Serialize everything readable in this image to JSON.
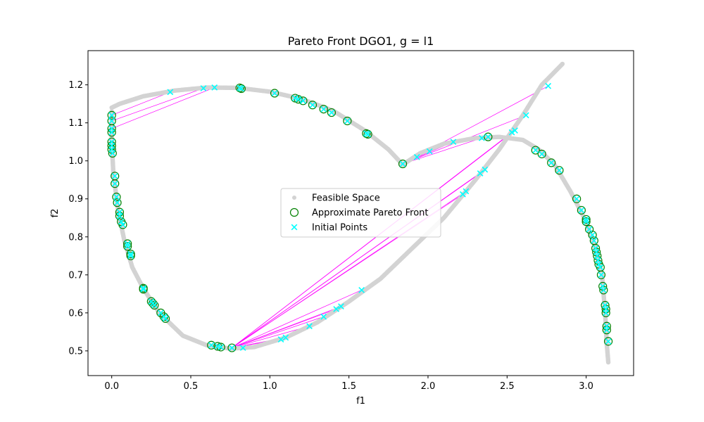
{
  "chart_data": {
    "type": "scatter",
    "title": "Pareto Front DGO1, g = l1",
    "xlabel": "f1",
    "ylabel": "f2",
    "xlim": [
      -0.15,
      3.3
    ],
    "ylim": [
      0.435,
      1.29
    ],
    "x_ticks": [
      "0.0",
      "0.5",
      "1.0",
      "1.5",
      "2.0",
      "2.5",
      "3.0"
    ],
    "y_ticks": [
      "0.5",
      "0.6",
      "0.7",
      "0.8",
      "0.9",
      "1.0",
      "1.1",
      "1.2"
    ],
    "legend": {
      "position": "center",
      "entries": [
        "Feasible Space",
        "Approximate Pareto Front",
        "Initial Points"
      ]
    },
    "colors": {
      "feasible": "#d3d3d3",
      "pareto_edge": "#008000",
      "pareto_fill": "#00ffff",
      "initial": "#00ffff",
      "trajectory": "#ff00ff"
    },
    "feasible_space_curve": [
      [
        0.0,
        1.14
      ],
      [
        0.05,
        1.15
      ],
      [
        0.2,
        1.17
      ],
      [
        0.4,
        1.185
      ],
      [
        0.6,
        1.193
      ],
      [
        0.8,
        1.192
      ],
      [
        1.0,
        1.182
      ],
      [
        1.2,
        1.163
      ],
      [
        1.4,
        1.132
      ],
      [
        1.6,
        1.08
      ],
      [
        1.75,
        1.03
      ],
      [
        1.84,
        0.99
      ],
      [
        1.95,
        1.02
      ],
      [
        2.1,
        1.045
      ],
      [
        2.3,
        1.06
      ],
      [
        2.45,
        1.063
      ],
      [
        2.6,
        1.055
      ],
      [
        2.7,
        1.03
      ],
      [
        2.8,
        0.99
      ],
      [
        2.9,
        0.92
      ],
      [
        3.0,
        0.84
      ],
      [
        3.06,
        0.77
      ],
      [
        3.1,
        0.7
      ],
      [
        3.12,
        0.6
      ],
      [
        3.13,
        0.52
      ],
      [
        3.14,
        0.47
      ],
      null,
      [
        0.0,
        1.13
      ],
      [
        0.0,
        1.05
      ],
      [
        0.01,
        0.97
      ],
      [
        0.04,
        0.87
      ],
      [
        0.08,
        0.79
      ],
      [
        0.13,
        0.72
      ],
      [
        0.2,
        0.664
      ],
      [
        0.3,
        0.6
      ],
      [
        0.45,
        0.54
      ],
      [
        0.6,
        0.515
      ],
      [
        0.75,
        0.506
      ],
      [
        0.9,
        0.51
      ],
      [
        1.1,
        0.535
      ],
      [
        1.3,
        0.575
      ],
      [
        1.5,
        0.63
      ],
      [
        1.7,
        0.69
      ],
      [
        1.9,
        0.77
      ],
      [
        2.1,
        0.85
      ],
      [
        2.3,
        0.95
      ],
      [
        2.45,
        1.03
      ],
      [
        2.6,
        1.12
      ],
      [
        2.72,
        1.2
      ],
      [
        2.85,
        1.255
      ]
    ],
    "pareto_front": [
      [
        0.0,
        1.12
      ],
      [
        0.0,
        1.105
      ],
      [
        0.0,
        1.085
      ],
      [
        0.0,
        1.075
      ],
      [
        0.0,
        1.05
      ],
      [
        0.0,
        1.04
      ],
      [
        0.0,
        1.03
      ],
      [
        0.005,
        1.02
      ],
      [
        0.02,
        0.96
      ],
      [
        0.02,
        0.94
      ],
      [
        0.03,
        0.905
      ],
      [
        0.035,
        0.89
      ],
      [
        0.05,
        0.865
      ],
      [
        0.05,
        0.855
      ],
      [
        0.06,
        0.84
      ],
      [
        0.07,
        0.832
      ],
      [
        0.1,
        0.782
      ],
      [
        0.1,
        0.775
      ],
      [
        0.12,
        0.755
      ],
      [
        0.12,
        0.75
      ],
      [
        0.2,
        0.665
      ],
      [
        0.2,
        0.662
      ],
      [
        0.25,
        0.63
      ],
      [
        0.26,
        0.625
      ],
      [
        0.27,
        0.62
      ],
      [
        0.31,
        0.6
      ],
      [
        0.33,
        0.59
      ],
      [
        0.34,
        0.585
      ],
      [
        0.63,
        0.515
      ],
      [
        0.67,
        0.512
      ],
      [
        0.69,
        0.51
      ],
      [
        0.76,
        0.508
      ],
      [
        0.81,
        1.192
      ],
      [
        0.82,
        1.19
      ],
      [
        1.03,
        1.178
      ],
      [
        1.16,
        1.165
      ],
      [
        1.18,
        1.162
      ],
      [
        1.21,
        1.158
      ],
      [
        1.27,
        1.147
      ],
      [
        1.34,
        1.136
      ],
      [
        1.39,
        1.127
      ],
      [
        1.49,
        1.105
      ],
      [
        1.61,
        1.072
      ],
      [
        1.62,
        1.07
      ],
      [
        1.84,
        0.992
      ],
      [
        2.38,
        1.063
      ],
      [
        2.68,
        1.028
      ],
      [
        2.72,
        1.018
      ],
      [
        2.78,
        0.995
      ],
      [
        2.83,
        0.975
      ],
      [
        2.94,
        0.9
      ],
      [
        2.97,
        0.87
      ],
      [
        3.0,
        0.846
      ],
      [
        3.0,
        0.84
      ],
      [
        3.02,
        0.82
      ],
      [
        3.04,
        0.805
      ],
      [
        3.05,
        0.79
      ],
      [
        3.06,
        0.77
      ],
      [
        3.065,
        0.76
      ],
      [
        3.07,
        0.75
      ],
      [
        3.075,
        0.738
      ],
      [
        3.08,
        0.728
      ],
      [
        3.09,
        0.72
      ],
      [
        3.095,
        0.7
      ],
      [
        3.105,
        0.67
      ],
      [
        3.11,
        0.66
      ],
      [
        3.12,
        0.62
      ],
      [
        3.125,
        0.61
      ],
      [
        3.125,
        0.6
      ],
      [
        3.13,
        0.565
      ],
      [
        3.13,
        0.555
      ],
      [
        3.14,
        0.525
      ]
    ],
    "initial_points": [
      [
        0.0,
        1.12
      ],
      [
        0.0,
        1.105
      ],
      [
        0.0,
        1.085
      ],
      [
        0.0,
        1.075
      ],
      [
        0.0,
        1.05
      ],
      [
        0.0,
        1.04
      ],
      [
        0.0,
        1.03
      ],
      [
        0.005,
        1.02
      ],
      [
        0.02,
        0.96
      ],
      [
        0.02,
        0.94
      ],
      [
        0.03,
        0.905
      ],
      [
        0.035,
        0.89
      ],
      [
        0.05,
        0.865
      ],
      [
        0.05,
        0.855
      ],
      [
        0.06,
        0.84
      ],
      [
        0.07,
        0.832
      ],
      [
        0.1,
        0.782
      ],
      [
        0.1,
        0.775
      ],
      [
        0.12,
        0.755
      ],
      [
        0.12,
        0.75
      ],
      [
        0.2,
        0.665
      ],
      [
        0.2,
        0.662
      ],
      [
        0.25,
        0.63
      ],
      [
        0.26,
        0.625
      ],
      [
        0.27,
        0.62
      ],
      [
        0.31,
        0.6
      ],
      [
        0.33,
        0.59
      ],
      [
        0.34,
        0.585
      ],
      [
        0.63,
        0.515
      ],
      [
        0.67,
        0.512
      ],
      [
        0.69,
        0.51
      ],
      [
        0.81,
        1.192
      ],
      [
        0.82,
        1.19
      ],
      [
        1.03,
        1.178
      ],
      [
        1.16,
        1.165
      ],
      [
        1.18,
        1.162
      ],
      [
        1.21,
        1.158
      ],
      [
        1.27,
        1.147
      ],
      [
        1.34,
        1.136
      ],
      [
        1.39,
        1.127
      ],
      [
        1.49,
        1.105
      ],
      [
        1.61,
        1.072
      ],
      [
        1.62,
        1.07
      ],
      [
        2.68,
        1.028
      ],
      [
        2.72,
        1.018
      ],
      [
        2.78,
        0.995
      ],
      [
        2.83,
        0.975
      ],
      [
        2.94,
        0.9
      ],
      [
        2.97,
        0.87
      ],
      [
        3.0,
        0.846
      ],
      [
        3.0,
        0.84
      ],
      [
        3.02,
        0.82
      ],
      [
        3.04,
        0.805
      ],
      [
        3.05,
        0.79
      ],
      [
        3.06,
        0.77
      ],
      [
        3.065,
        0.76
      ],
      [
        3.07,
        0.75
      ],
      [
        3.075,
        0.738
      ],
      [
        3.08,
        0.728
      ],
      [
        3.09,
        0.72
      ],
      [
        3.095,
        0.7
      ],
      [
        3.105,
        0.67
      ],
      [
        3.11,
        0.66
      ],
      [
        3.12,
        0.62
      ],
      [
        3.125,
        0.61
      ],
      [
        3.125,
        0.6
      ],
      [
        3.13,
        0.565
      ],
      [
        3.13,
        0.555
      ],
      [
        3.14,
        0.525
      ],
      [
        0.37,
        1.181
      ],
      [
        0.58,
        1.191
      ],
      [
        0.65,
        1.193
      ],
      [
        1.84,
        0.992
      ],
      [
        1.93,
        1.01
      ],
      [
        2.01,
        1.025
      ],
      [
        2.16,
        1.05
      ],
      [
        2.34,
        1.06
      ],
      [
        2.38,
        1.063
      ],
      [
        2.53,
        1.075
      ],
      [
        2.55,
        1.08
      ],
      [
        2.62,
        1.12
      ],
      [
        2.76,
        1.197
      ],
      [
        0.76,
        0.508
      ],
      [
        0.83,
        0.508
      ],
      [
        1.07,
        0.53
      ],
      [
        1.1,
        0.535
      ],
      [
        1.25,
        0.565
      ],
      [
        1.34,
        0.59
      ],
      [
        1.42,
        0.61
      ],
      [
        1.45,
        0.617
      ],
      [
        1.58,
        0.66
      ],
      [
        2.22,
        0.912
      ],
      [
        2.24,
        0.92
      ],
      [
        2.33,
        0.967
      ],
      [
        2.36,
        0.977
      ]
    ],
    "trajectories": [
      [
        [
          0.0,
          1.12
        ],
        [
          0.37,
          1.181
        ]
      ],
      [
        [
          0.0,
          1.105
        ],
        [
          0.58,
          1.191
        ]
      ],
      [
        [
          0.0,
          1.085
        ],
        [
          0.65,
          1.193
        ]
      ],
      [
        [
          1.84,
          0.992
        ],
        [
          2.01,
          1.025
        ]
      ],
      [
        [
          1.84,
          0.992
        ],
        [
          2.16,
          1.05
        ]
      ],
      [
        [
          1.84,
          0.992
        ],
        [
          2.34,
          1.06
        ]
      ],
      [
        [
          1.84,
          0.992
        ],
        [
          2.62,
          1.12
        ]
      ],
      [
        [
          1.84,
          0.992
        ],
        [
          2.76,
          1.197
        ]
      ],
      [
        [
          0.76,
          0.508
        ],
        [
          0.83,
          0.508
        ]
      ],
      [
        [
          0.76,
          0.508
        ],
        [
          1.07,
          0.53
        ]
      ],
      [
        [
          0.76,
          0.508
        ],
        [
          1.1,
          0.535
        ]
      ],
      [
        [
          0.76,
          0.508
        ],
        [
          1.25,
          0.565
        ]
      ],
      [
        [
          0.76,
          0.508
        ],
        [
          1.34,
          0.59
        ]
      ],
      [
        [
          0.76,
          0.508
        ],
        [
          1.42,
          0.61
        ]
      ],
      [
        [
          0.76,
          0.508
        ],
        [
          1.45,
          0.617
        ]
      ],
      [
        [
          0.76,
          0.508
        ],
        [
          1.58,
          0.66
        ]
      ],
      [
        [
          0.76,
          0.508
        ],
        [
          2.22,
          0.912
        ]
      ],
      [
        [
          0.76,
          0.508
        ],
        [
          2.24,
          0.92
        ]
      ],
      [
        [
          0.76,
          0.508
        ],
        [
          2.33,
          0.967
        ]
      ],
      [
        [
          0.76,
          0.508
        ],
        [
          2.36,
          0.977
        ]
      ],
      [
        [
          0.76,
          0.508
        ],
        [
          2.53,
          1.075
        ]
      ],
      [
        [
          0.76,
          0.508
        ],
        [
          2.55,
          1.08
        ]
      ]
    ]
  }
}
